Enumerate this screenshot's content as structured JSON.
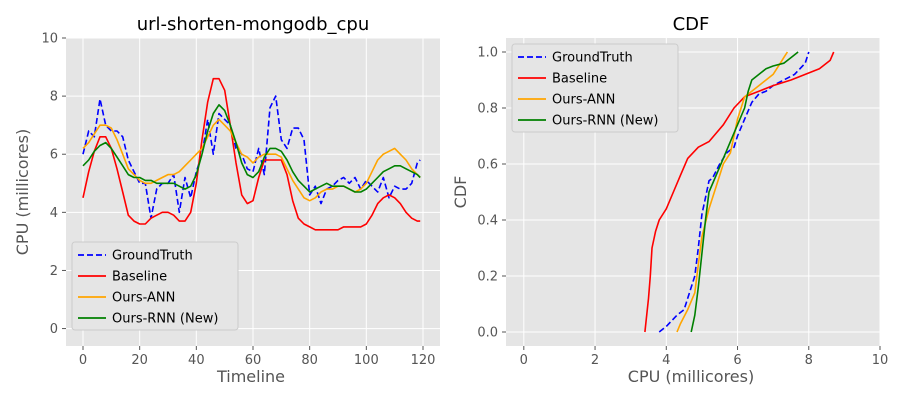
{
  "colors": {
    "panel_bg": "#e5e5e5",
    "grid": "#ffffff",
    "legend_bg": "#e5e5e5",
    "legend_border": "#cccccc"
  },
  "chart_data": [
    {
      "type": "line",
      "title": "url-shorten-mongodb_cpu",
      "xlabel": "Timeline",
      "ylabel": "CPU (millicores)",
      "xlim": [
        -6,
        126
      ],
      "ylim": [
        -0.6,
        10
      ],
      "xticks": [
        0,
        20,
        40,
        60,
        80,
        100,
        120
      ],
      "yticks": [
        0,
        2,
        4,
        6,
        8,
        10
      ],
      "grid": true,
      "legend_position": "lower-left",
      "series": [
        {
          "name": "GroundTruth",
          "color": "#0000ff",
          "dash": "dashed",
          "x": [
            0,
            2,
            4,
            6,
            8,
            10,
            12,
            14,
            16,
            18,
            20,
            22,
            24,
            26,
            28,
            30,
            32,
            34,
            36,
            38,
            40,
            42,
            44,
            46,
            48,
            50,
            52,
            54,
            56,
            58,
            60,
            62,
            64,
            66,
            68,
            70,
            72,
            74,
            76,
            78,
            80,
            82,
            84,
            86,
            88,
            90,
            92,
            94,
            96,
            98,
            100,
            102,
            104,
            106,
            108,
            110,
            112,
            114,
            116,
            118,
            119
          ],
          "y": [
            6.0,
            6.8,
            6.6,
            7.9,
            7.0,
            6.8,
            6.8,
            6.6,
            5.8,
            5.4,
            5.0,
            5.0,
            3.8,
            4.8,
            5.0,
            5.0,
            5.3,
            4.0,
            5.2,
            4.5,
            5.4,
            6.0,
            7.2,
            6.0,
            7.4,
            7.2,
            7.0,
            6.2,
            6.0,
            5.5,
            5.4,
            6.2,
            5.3,
            7.6,
            8.0,
            6.5,
            6.2,
            6.9,
            6.9,
            6.5,
            4.6,
            4.9,
            4.3,
            4.8,
            4.9,
            5.1,
            5.2,
            5.0,
            5.2,
            4.8,
            5.1,
            4.9,
            4.7,
            5.2,
            4.5,
            4.9,
            4.8,
            4.8,
            5.0,
            5.7,
            5.8
          ]
        },
        {
          "name": "Baseline",
          "color": "#ff0000",
          "dash": "solid",
          "x": [
            0,
            2,
            4,
            6,
            8,
            10,
            12,
            14,
            16,
            18,
            20,
            22,
            24,
            26,
            28,
            30,
            32,
            34,
            36,
            38,
            40,
            42,
            44,
            46,
            48,
            50,
            52,
            54,
            56,
            58,
            60,
            62,
            64,
            66,
            68,
            70,
            72,
            74,
            76,
            78,
            80,
            82,
            84,
            86,
            88,
            90,
            92,
            94,
            96,
            98,
            100,
            102,
            104,
            106,
            108,
            110,
            112,
            114,
            116,
            118,
            119
          ],
          "y": [
            4.5,
            5.4,
            6.1,
            6.6,
            6.6,
            6.2,
            5.5,
            4.7,
            3.9,
            3.7,
            3.6,
            3.6,
            3.8,
            3.9,
            4.0,
            4.0,
            3.9,
            3.7,
            3.7,
            4.0,
            5.0,
            6.5,
            7.8,
            8.6,
            8.6,
            8.2,
            7.0,
            5.7,
            4.6,
            4.3,
            4.4,
            5.2,
            5.8,
            5.8,
            5.8,
            5.8,
            5.3,
            4.4,
            3.8,
            3.6,
            3.5,
            3.4,
            3.4,
            3.4,
            3.4,
            3.4,
            3.5,
            3.5,
            3.5,
            3.5,
            3.6,
            3.9,
            4.3,
            4.5,
            4.6,
            4.5,
            4.3,
            4.0,
            3.8,
            3.7,
            3.7
          ]
        },
        {
          "name": "Ours-ANN",
          "color": "#ffa500",
          "dash": "solid",
          "x": [
            0,
            2,
            4,
            6,
            8,
            10,
            12,
            14,
            16,
            18,
            20,
            22,
            24,
            26,
            28,
            30,
            32,
            34,
            36,
            38,
            40,
            42,
            44,
            46,
            48,
            50,
            52,
            54,
            56,
            58,
            60,
            62,
            64,
            66,
            68,
            70,
            72,
            74,
            76,
            78,
            80,
            82,
            84,
            86,
            88,
            90,
            92,
            94,
            96,
            98,
            100,
            102,
            104,
            106,
            108,
            110,
            112,
            114,
            116,
            118,
            119
          ],
          "y": [
            6.2,
            6.4,
            6.7,
            7.0,
            7.0,
            6.9,
            6.5,
            6.0,
            5.5,
            5.3,
            5.1,
            5.0,
            5.0,
            5.1,
            5.2,
            5.3,
            5.3,
            5.4,
            5.6,
            5.8,
            6.0,
            6.2,
            6.6,
            7.0,
            7.2,
            7.0,
            6.8,
            6.4,
            6.0,
            5.9,
            5.7,
            5.9,
            6.0,
            6.0,
            6.0,
            5.9,
            5.5,
            5.1,
            4.8,
            4.5,
            4.4,
            4.5,
            4.7,
            4.8,
            4.8,
            4.9,
            4.9,
            4.8,
            4.7,
            4.8,
            5.0,
            5.4,
            5.8,
            6.0,
            6.1,
            6.2,
            6.0,
            5.8,
            5.5,
            5.3,
            5.2
          ]
        },
        {
          "name": "Ours-RNN (New)",
          "color": "#008000",
          "dash": "solid",
          "x": [
            0,
            2,
            4,
            6,
            8,
            10,
            12,
            14,
            16,
            18,
            20,
            22,
            24,
            26,
            28,
            30,
            32,
            34,
            36,
            38,
            40,
            42,
            44,
            46,
            48,
            50,
            52,
            54,
            56,
            58,
            60,
            62,
            64,
            66,
            68,
            70,
            72,
            74,
            76,
            78,
            80,
            82,
            84,
            86,
            88,
            90,
            92,
            94,
            96,
            98,
            100,
            102,
            104,
            106,
            108,
            110,
            112,
            114,
            116,
            118,
            119
          ],
          "y": [
            5.6,
            5.8,
            6.1,
            6.3,
            6.4,
            6.2,
            5.9,
            5.6,
            5.3,
            5.2,
            5.2,
            5.1,
            5.1,
            5.0,
            5.0,
            5.0,
            5.0,
            4.9,
            4.8,
            4.9,
            5.3,
            6.0,
            6.8,
            7.4,
            7.7,
            7.5,
            7.0,
            6.4,
            5.7,
            5.3,
            5.2,
            5.4,
            5.9,
            6.2,
            6.2,
            6.1,
            5.8,
            5.4,
            5.1,
            4.9,
            4.7,
            4.8,
            4.9,
            5.0,
            4.9,
            4.9,
            4.9,
            4.8,
            4.7,
            4.7,
            4.8,
            5.0,
            5.2,
            5.4,
            5.5,
            5.6,
            5.6,
            5.5,
            5.4,
            5.3,
            5.2
          ]
        }
      ]
    },
    {
      "type": "line",
      "title": "CDF",
      "xlabel": "CPU (millicores)",
      "ylabel": "CDF",
      "xlim": [
        -0.5,
        10
      ],
      "ylim": [
        -0.05,
        1.05
      ],
      "xticks": [
        0,
        2,
        4,
        6,
        8,
        10
      ],
      "yticks": [
        0.0,
        0.2,
        0.4,
        0.6,
        0.8,
        1.0
      ],
      "ytick_labels": [
        "0.0",
        "0.2",
        "0.4",
        "0.6",
        "0.8",
        "1.0"
      ],
      "grid": true,
      "legend_position": "top-left",
      "series": [
        {
          "name": "GroundTruth",
          "color": "#0000ff",
          "dash": "dashed",
          "x": [
            3.8,
            4.0,
            4.3,
            4.5,
            4.8,
            4.9,
            5.0,
            5.1,
            5.2,
            5.3,
            5.5,
            5.7,
            5.9,
            6.0,
            6.2,
            6.4,
            6.6,
            6.8,
            7.0,
            7.3,
            7.6,
            7.9,
            8.0
          ],
          "y": [
            0.0,
            0.02,
            0.06,
            0.08,
            0.2,
            0.3,
            0.42,
            0.48,
            0.54,
            0.55,
            0.6,
            0.64,
            0.66,
            0.7,
            0.76,
            0.82,
            0.85,
            0.86,
            0.88,
            0.9,
            0.92,
            0.96,
            1.0
          ]
        },
        {
          "name": "Baseline",
          "color": "#ff0000",
          "dash": "solid",
          "x": [
            3.4,
            3.45,
            3.5,
            3.55,
            3.6,
            3.7,
            3.8,
            4.0,
            4.2,
            4.4,
            4.6,
            4.9,
            5.2,
            5.6,
            5.9,
            6.2,
            6.6,
            7.0,
            7.5,
            7.9,
            8.3,
            8.6,
            8.7
          ],
          "y": [
            0.0,
            0.06,
            0.12,
            0.2,
            0.3,
            0.36,
            0.4,
            0.44,
            0.5,
            0.56,
            0.62,
            0.66,
            0.68,
            0.74,
            0.8,
            0.84,
            0.86,
            0.88,
            0.9,
            0.92,
            0.94,
            0.97,
            1.0
          ]
        },
        {
          "name": "Ours-ANN",
          "color": "#ffa500",
          "dash": "solid",
          "x": [
            4.3,
            4.4,
            4.6,
            4.8,
            4.9,
            5.0,
            5.2,
            5.4,
            5.6,
            5.8,
            5.9,
            6.0,
            6.1,
            6.2,
            6.4,
            6.6,
            6.8,
            7.0,
            7.2,
            7.3,
            7.4
          ],
          "y": [
            0.0,
            0.03,
            0.08,
            0.14,
            0.24,
            0.34,
            0.44,
            0.52,
            0.6,
            0.64,
            0.7,
            0.76,
            0.8,
            0.84,
            0.86,
            0.88,
            0.9,
            0.92,
            0.96,
            0.98,
            1.0
          ]
        },
        {
          "name": "Ours-RNN (New)",
          "color": "#008000",
          "dash": "solid",
          "x": [
            4.7,
            4.8,
            4.9,
            5.0,
            5.1,
            5.2,
            5.4,
            5.6,
            5.8,
            6.0,
            6.2,
            6.3,
            6.4,
            6.6,
            6.8,
            7.0,
            7.3,
            7.5,
            7.7
          ],
          "y": [
            0.0,
            0.06,
            0.16,
            0.28,
            0.4,
            0.5,
            0.56,
            0.62,
            0.68,
            0.74,
            0.8,
            0.86,
            0.9,
            0.92,
            0.94,
            0.95,
            0.96,
            0.98,
            1.0
          ]
        }
      ]
    }
  ]
}
